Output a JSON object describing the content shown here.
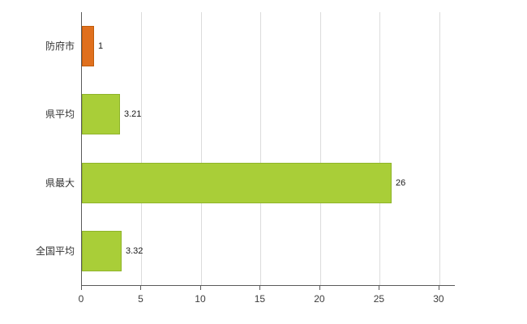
{
  "chart_data": {
    "type": "bar",
    "orientation": "horizontal",
    "title": "",
    "categories": [
      "防府市",
      "県平均",
      "県最大",
      "全国平均"
    ],
    "values": [
      1,
      3.21,
      26,
      3.32
    ],
    "value_labels": [
      "1",
      "3.21",
      "26",
      "3.32"
    ],
    "bar_colors": [
      "#e0701e",
      "#a9ce38",
      "#a9ce38",
      "#a9ce38"
    ],
    "bar_border_colors": [
      "#c05c0a",
      "#8fb42a",
      "#8fb42a",
      "#8fb42a"
    ],
    "xlabel": "",
    "ylabel": "",
    "xlim": [
      0,
      31.3
    ],
    "x_ticks": [
      0,
      5,
      10,
      15,
      20,
      25,
      30
    ],
    "grid": true,
    "legend_position": "none"
  },
  "style": {
    "background": "#ffffff",
    "grid_color": "#dcdcdc",
    "axis_color": "#5a5a5a",
    "text_color": "#333333"
  }
}
